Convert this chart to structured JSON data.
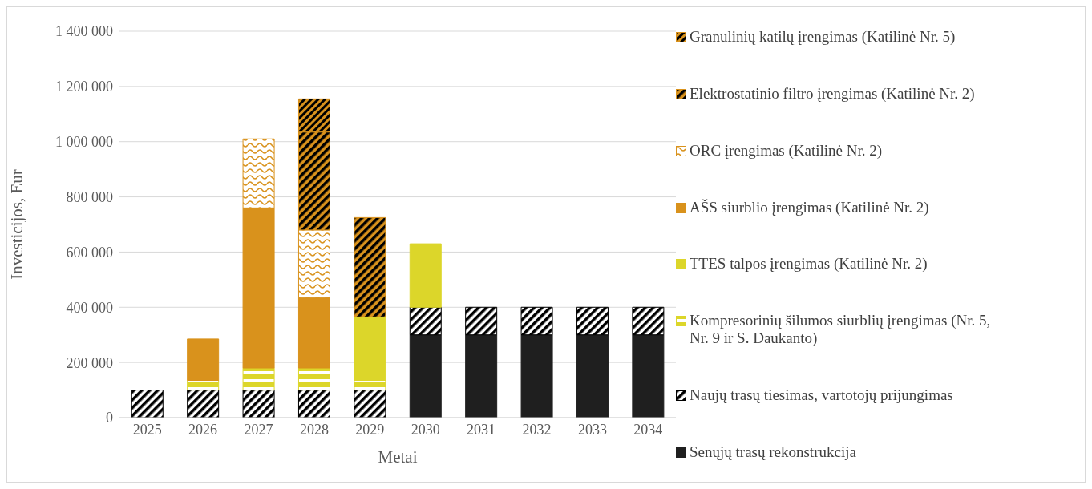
{
  "chart_data": {
    "type": "bar",
    "stacked": true,
    "xlabel": "Metai",
    "ylabel": "Investicijos, Eur",
    "categories": [
      "2025",
      "2026",
      "2027",
      "2028",
      "2029",
      "2030",
      "2031",
      "2032",
      "2033",
      "2034"
    ],
    "series": [
      {
        "name": "Senųjų trasų rekonstrukcija",
        "color": "#1f1f1f",
        "values": [
          0,
          0,
          0,
          0,
          0,
          300000,
          300000,
          300000,
          300000,
          300000
        ]
      },
      {
        "name": "Naujų trasų tiesimas, vartotojų prijungimas",
        "color": "#000000",
        "values": [
          100000,
          100000,
          100000,
          100000,
          100000,
          100000,
          100000,
          100000,
          100000,
          100000
        ]
      },
      {
        "name": "Kompresorinių šilumos siurblių įrengimas (Nr. 5, Nr. 9 ir S. Daukanto)",
        "color": "#dcd62a",
        "values": [
          0,
          35000,
          80000,
          80000,
          35000,
          0,
          0,
          0,
          0,
          0
        ]
      },
      {
        "name": "TTES talpos įrengimas (Katilinė Nr. 2)",
        "color": "#dcd62a",
        "values": [
          0,
          0,
          0,
          0,
          230000,
          230000,
          0,
          0,
          0,
          0
        ]
      },
      {
        "name": "AŠS siurblio įrengimas (Katilinė Nr. 2)",
        "color": "#d9921c",
        "values": [
          0,
          150000,
          580000,
          255000,
          0,
          0,
          0,
          0,
          0,
          0
        ]
      },
      {
        "name": "ORC įrengimas (Katilinė Nr. 2)",
        "color": "#d9921c",
        "values": [
          0,
          0,
          250000,
          245000,
          0,
          0,
          0,
          0,
          0,
          0
        ]
      },
      {
        "name": "Elektrostatinio filtro įrengimas (Katilinė Nr. 2)",
        "color": "#d9921c",
        "values": [
          0,
          0,
          0,
          355000,
          360000,
          0,
          0,
          0,
          0,
          0
        ]
      },
      {
        "name": "Granulinių katilų įrengimas (Katilinė Nr. 5)",
        "color": "#d9921c",
        "values": [
          0,
          0,
          0,
          120000,
          0,
          0,
          0,
          0,
          0,
          0
        ]
      }
    ],
    "ylim": [
      0,
      1400000
    ],
    "yticks": [
      {
        "value": 0,
        "label": "0"
      },
      {
        "value": 200000,
        "label": "200 000"
      },
      {
        "value": 400000,
        "label": "400 000"
      },
      {
        "value": 600000,
        "label": "600 000"
      },
      {
        "value": 800000,
        "label": "800 000"
      },
      {
        "value": 1000000,
        "label": "1 000 000"
      },
      {
        "value": 1200000,
        "label": "1 200 000"
      },
      {
        "value": 1400000,
        "label": "1 400 000"
      }
    ],
    "grid": "y",
    "legend": "right"
  }
}
